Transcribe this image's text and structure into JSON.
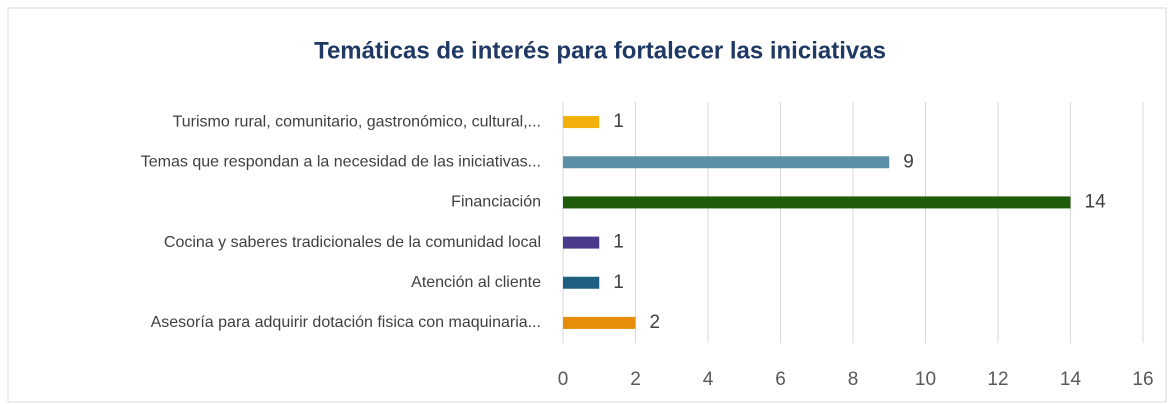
{
  "chart_data": {
    "type": "bar",
    "orientation": "horizontal",
    "title": "Temáticas de interés para fortalecer las iniciativas",
    "categories": [
      "Turismo rural, comunitario, gastronómico, cultural,...",
      "Temas que respondan a la necesidad de las iniciativas...",
      "Financiación",
      "Cocina y saberes tradicionales de la comunidad local",
      "Atención al cliente",
      "Asesoría para adquirir dotación fisica con maquinaria..."
    ],
    "values": [
      1,
      9,
      14,
      1,
      1,
      2
    ],
    "colors": [
      "#f2b10a",
      "#5b8fa8",
      "#1e5b0a",
      "#4b3a8c",
      "#1f6080",
      "#e88c0c"
    ],
    "xlim": [
      0,
      16
    ],
    "xticks": [
      0,
      2,
      4,
      6,
      8,
      10,
      12,
      14,
      16
    ],
    "grid": true
  }
}
